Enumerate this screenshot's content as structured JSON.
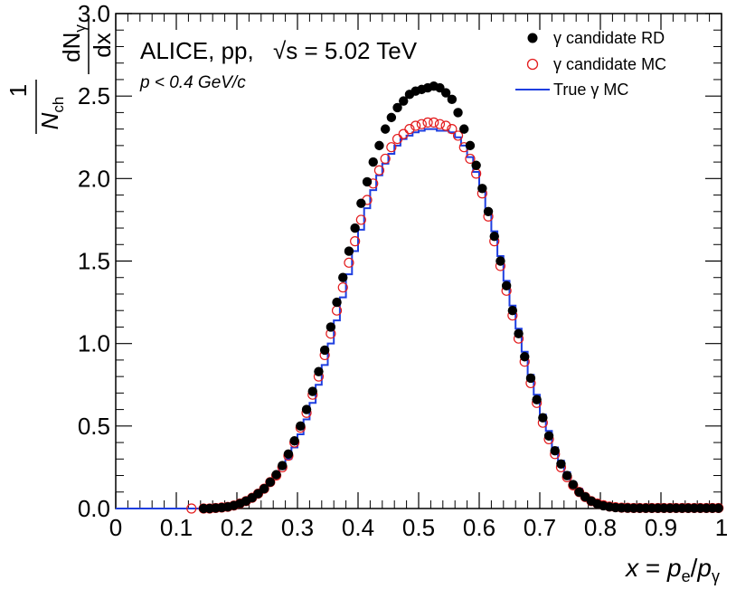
{
  "chart_data": {
    "type": "scatter",
    "title": "",
    "annotation": {
      "experiment": "ALICE, pp,",
      "energy_label": "√s = 5.02 TeV",
      "cut_label": "p < 0.4 GeV/c"
    },
    "xlabel": "x = pe/pγ",
    "xlabel_parts": {
      "lhs": "x",
      "eq": " = ",
      "num": "p",
      "num_sub": "e",
      "slash": "/",
      "den": "p",
      "den_sub": "γ"
    },
    "ylabel": "1/Nch dNγ/dx",
    "ylabel_parts": {
      "one": "1",
      "nch": "N",
      "nch_sub": "ch",
      "dn": "dN",
      "dn_sub": "γ",
      "dx": "dx"
    },
    "xlim": [
      0,
      1
    ],
    "ylim": [
      0,
      3.0
    ],
    "x_ticks": [
      "0",
      "0.1",
      "0.2",
      "0.3",
      "0.4",
      "0.5",
      "0.6",
      "0.7",
      "0.8",
      "0.9",
      "1"
    ],
    "y_ticks": [
      "0.0",
      "0.5",
      "1.0",
      "1.5",
      "2.0",
      "2.5",
      "3.0"
    ],
    "legend": {
      "placement": "top-right",
      "entries": [
        "γ candidate RD",
        "γ candidate MC",
        "True γ MC"
      ]
    },
    "series": [
      {
        "name": "γ candidate RD",
        "marker": "filled-circle",
        "color": "#000000",
        "x": [
          0.145,
          0.155,
          0.165,
          0.175,
          0.185,
          0.195,
          0.205,
          0.215,
          0.225,
          0.235,
          0.245,
          0.255,
          0.265,
          0.275,
          0.285,
          0.295,
          0.305,
          0.315,
          0.325,
          0.335,
          0.345,
          0.355,
          0.365,
          0.375,
          0.385,
          0.395,
          0.405,
          0.415,
          0.425,
          0.435,
          0.445,
          0.455,
          0.465,
          0.475,
          0.485,
          0.495,
          0.505,
          0.515,
          0.525,
          0.535,
          0.545,
          0.555,
          0.565,
          0.575,
          0.585,
          0.595,
          0.605,
          0.615,
          0.625,
          0.635,
          0.645,
          0.655,
          0.665,
          0.675,
          0.685,
          0.695,
          0.705,
          0.715,
          0.725,
          0.735,
          0.745,
          0.755,
          0.765,
          0.775,
          0.785,
          0.795,
          0.805,
          0.815,
          0.825,
          0.835,
          0.845,
          0.855,
          0.865,
          0.875,
          0.885,
          0.895,
          0.905,
          0.915,
          0.925,
          0.935,
          0.945,
          0.955,
          0.965,
          0.975,
          0.985,
          0.995
        ],
        "y": [
          0.0,
          0.0,
          0.003,
          0.006,
          0.01,
          0.018,
          0.03,
          0.045,
          0.065,
          0.09,
          0.12,
          0.16,
          0.205,
          0.26,
          0.33,
          0.41,
          0.5,
          0.6,
          0.71,
          0.83,
          0.96,
          1.1,
          1.25,
          1.4,
          1.56,
          1.7,
          1.85,
          1.98,
          2.1,
          2.2,
          2.3,
          2.37,
          2.43,
          2.47,
          2.51,
          2.53,
          2.54,
          2.55,
          2.56,
          2.55,
          2.52,
          2.48,
          2.4,
          2.3,
          2.2,
          2.08,
          1.94,
          1.8,
          1.65,
          1.5,
          1.35,
          1.2,
          1.06,
          0.92,
          0.79,
          0.66,
          0.55,
          0.44,
          0.35,
          0.27,
          0.2,
          0.145,
          0.1,
          0.07,
          0.045,
          0.028,
          0.017,
          0.01,
          0.006,
          0.004,
          0.003,
          0.002,
          0.002,
          0.002,
          0.002,
          0.002,
          0.002,
          0.002,
          0.002,
          0.002,
          0.002,
          0.002,
          0.002,
          0.002,
          0.002,
          0.002
        ]
      },
      {
        "name": "γ candidate MC",
        "marker": "open-circle",
        "color": "#e31a1c",
        "x": [
          0.125,
          0.145,
          0.155,
          0.165,
          0.175,
          0.185,
          0.195,
          0.205,
          0.215,
          0.225,
          0.235,
          0.245,
          0.255,
          0.265,
          0.275,
          0.285,
          0.295,
          0.305,
          0.315,
          0.325,
          0.335,
          0.345,
          0.355,
          0.365,
          0.375,
          0.385,
          0.395,
          0.405,
          0.415,
          0.425,
          0.435,
          0.445,
          0.455,
          0.465,
          0.475,
          0.485,
          0.495,
          0.505,
          0.515,
          0.525,
          0.535,
          0.545,
          0.555,
          0.565,
          0.575,
          0.585,
          0.595,
          0.605,
          0.615,
          0.625,
          0.635,
          0.645,
          0.655,
          0.665,
          0.675,
          0.685,
          0.695,
          0.705,
          0.715,
          0.725,
          0.735,
          0.745,
          0.755,
          0.765,
          0.775,
          0.785,
          0.795,
          0.805,
          0.815,
          0.825,
          0.835,
          0.845,
          0.855,
          0.865,
          0.875,
          0.885,
          0.895,
          0.905,
          0.915,
          0.925,
          0.935,
          0.945,
          0.955,
          0.965,
          0.975,
          0.985,
          0.995
        ],
        "y": [
          0.0,
          0.0,
          0.0,
          0.003,
          0.006,
          0.01,
          0.018,
          0.03,
          0.045,
          0.065,
          0.09,
          0.12,
          0.16,
          0.2,
          0.25,
          0.32,
          0.4,
          0.49,
          0.58,
          0.69,
          0.8,
          0.93,
          1.06,
          1.2,
          1.34,
          1.49,
          1.62,
          1.75,
          1.87,
          1.97,
          2.05,
          2.12,
          2.19,
          2.24,
          2.27,
          2.3,
          2.32,
          2.33,
          2.34,
          2.34,
          2.33,
          2.32,
          2.3,
          2.26,
          2.19,
          2.12,
          2.03,
          1.91,
          1.77,
          1.62,
          1.47,
          1.32,
          1.17,
          1.03,
          0.89,
          0.76,
          0.64,
          0.52,
          0.42,
          0.33,
          0.25,
          0.19,
          0.14,
          0.1,
          0.07,
          0.045,
          0.03,
          0.02,
          0.012,
          0.008,
          0.005,
          0.004,
          0.003,
          0.003,
          0.003,
          0.003,
          0.003,
          0.003,
          0.003,
          0.003,
          0.003,
          0.003,
          0.003,
          0.003,
          0.003,
          0.003,
          0.003
        ]
      },
      {
        "name": "True γ MC",
        "marker": "step-line",
        "color": "#1f3fe0",
        "x": [
          0.0,
          0.01,
          0.02,
          0.03,
          0.04,
          0.05,
          0.06,
          0.07,
          0.08,
          0.09,
          0.1,
          0.11,
          0.12,
          0.13,
          0.14,
          0.15,
          0.16,
          0.17,
          0.18,
          0.19,
          0.2,
          0.21,
          0.22,
          0.23,
          0.24,
          0.25,
          0.26,
          0.27,
          0.28,
          0.29,
          0.3,
          0.31,
          0.32,
          0.33,
          0.34,
          0.35,
          0.36,
          0.37,
          0.38,
          0.39,
          0.4,
          0.41,
          0.42,
          0.43,
          0.44,
          0.45,
          0.46,
          0.47,
          0.48,
          0.49,
          0.5,
          0.51,
          0.52,
          0.53,
          0.54,
          0.55,
          0.56,
          0.57,
          0.58,
          0.59,
          0.6,
          0.61,
          0.62,
          0.63,
          0.64,
          0.65,
          0.66,
          0.67,
          0.68,
          0.69,
          0.7,
          0.71,
          0.72,
          0.73,
          0.74,
          0.75,
          0.76,
          0.77,
          0.78,
          0.79,
          0.8,
          0.81,
          0.82,
          0.83,
          0.84,
          0.85,
          0.86,
          0.87,
          0.88,
          0.89,
          0.9,
          0.91,
          0.92,
          0.93,
          0.94,
          0.95,
          0.96,
          0.97,
          0.98,
          0.99
        ],
        "y": [
          0.0,
          0.0,
          0.0,
          0.0,
          0.0,
          0.0,
          0.0,
          0.0,
          0.0,
          0.0,
          0.0,
          0.0,
          0.0,
          0.0,
          0.0,
          0.0,
          0.002,
          0.005,
          0.009,
          0.016,
          0.027,
          0.042,
          0.06,
          0.085,
          0.113,
          0.15,
          0.19,
          0.24,
          0.3,
          0.37,
          0.45,
          0.54,
          0.64,
          0.75,
          0.87,
          1.0,
          1.14,
          1.28,
          1.42,
          1.56,
          1.69,
          1.82,
          1.93,
          2.02,
          2.09,
          2.15,
          2.2,
          2.24,
          2.26,
          2.28,
          2.29,
          2.3,
          2.3,
          2.29,
          2.29,
          2.28,
          2.25,
          2.2,
          2.13,
          2.04,
          1.93,
          1.81,
          1.68,
          1.53,
          1.38,
          1.23,
          1.09,
          0.95,
          0.81,
          0.69,
          0.57,
          0.47,
          0.37,
          0.29,
          0.22,
          0.16,
          0.12,
          0.08,
          0.055,
          0.035,
          0.022,
          0.013,
          0.008,
          0.005,
          0.003,
          0.002,
          0.002,
          0.002,
          0.002,
          0.002,
          0.002,
          0.002,
          0.002,
          0.002,
          0.002,
          0.002,
          0.002,
          0.002,
          0.002,
          0.002
        ]
      }
    ]
  }
}
